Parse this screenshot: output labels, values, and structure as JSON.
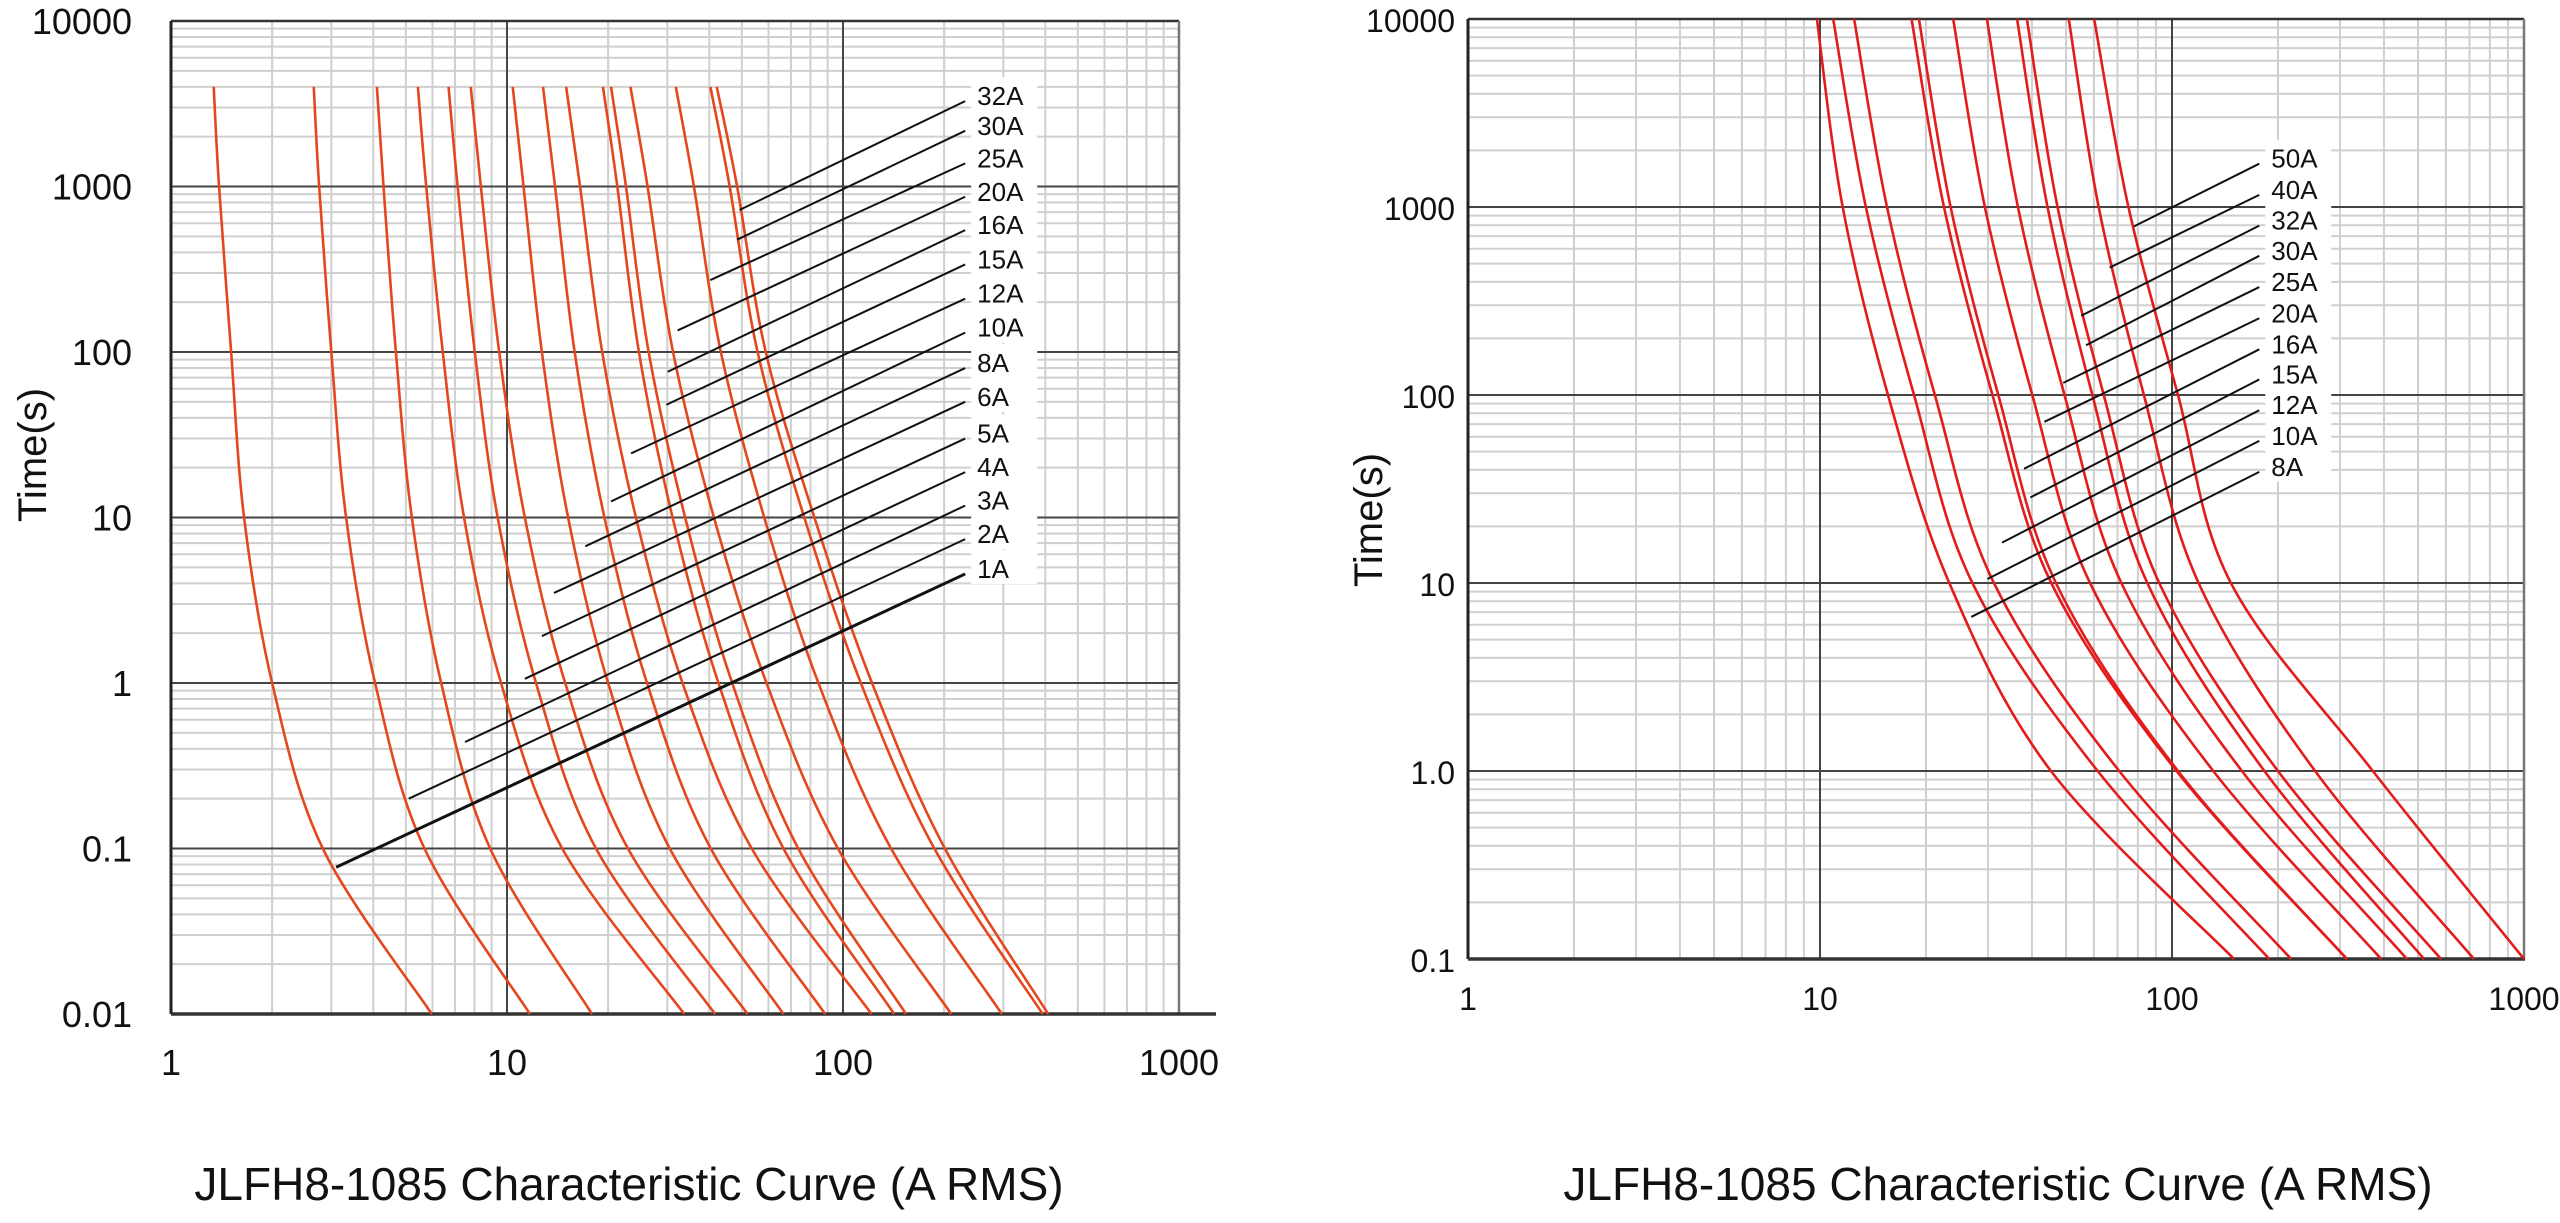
{
  "chart_data": [
    {
      "type": "line",
      "title": "JLFH8-1085  Characteristic Curve (A RMS)",
      "xlabel": "",
      "ylabel": "Time(s)",
      "xscale": "log",
      "yscale": "log",
      "xlim": [
        1,
        1000
      ],
      "ylim": [
        0.01,
        10000
      ],
      "grid": true,
      "line_color": "#e5461c",
      "x_ticks": [
        "1",
        "10",
        "100",
        "1000"
      ],
      "y_ticks": [
        "10000",
        "1000",
        "100",
        "10",
        "1",
        "0.1",
        "0.01"
      ],
      "legend": "leader-line labels, right",
      "series": [
        {
          "name": "1A",
          "points": [
            [
              1.34,
              4000
            ],
            [
              1.39,
              1000
            ],
            [
              1.51,
              100
            ],
            [
              1.65,
              10
            ],
            [
              2.0,
              1
            ],
            [
              2.83,
              0.1
            ],
            [
              5.97,
              0.01
            ]
          ],
          "label_from": [
            3.1,
            0.077
          ],
          "label_to": [
            231,
            4.56
          ]
        },
        {
          "name": "2A",
          "points": [
            [
              2.66,
              4000
            ],
            [
              2.76,
              1000
            ],
            [
              3.0,
              100
            ],
            [
              3.32,
              10
            ],
            [
              4.05,
              1
            ],
            [
              5.68,
              0.1
            ],
            [
              11.7,
              0.01
            ]
          ],
          "label_from": [
            5.1,
            0.2
          ],
          "label_to": [
            231,
            7.4
          ]
        },
        {
          "name": "3A",
          "points": [
            [
              4.1,
              4000
            ],
            [
              4.29,
              1000
            ],
            [
              4.67,
              100
            ],
            [
              5.21,
              10
            ],
            [
              6.37,
              1
            ],
            [
              8.91,
              0.1
            ],
            [
              17.9,
              0.01
            ]
          ],
          "label_from": [
            7.5,
            0.44
          ],
          "label_to": [
            231,
            11.8
          ]
        },
        {
          "name": "4A",
          "points": [
            [
              5.43,
              4000
            ],
            [
              5.75,
              1000
            ],
            [
              6.44,
              100
            ],
            [
              7.45,
              10
            ],
            [
              9.6,
              1
            ],
            [
              14.6,
              0.1
            ],
            [
              33.7,
              0.01
            ]
          ],
          "label_from": [
            11.3,
            1.06
          ],
          "label_to": [
            231,
            18.8
          ]
        },
        {
          "name": "5A",
          "points": [
            [
              6.7,
              4000
            ],
            [
              7.13,
              1000
            ],
            [
              8.02,
              100
            ],
            [
              9.38,
              10
            ],
            [
              12.2,
              1
            ],
            [
              18.4,
              0.1
            ],
            [
              41.6,
              0.01
            ]
          ],
          "label_from": [
            12.7,
            1.92
          ],
          "label_to": [
            231,
            30
          ]
        },
        {
          "name": "6A",
          "points": [
            [
              7.8,
              4000
            ],
            [
              8.36,
              1000
            ],
            [
              9.48,
              100
            ],
            [
              11.3,
              10
            ],
            [
              14.9,
              1
            ],
            [
              22.9,
              0.1
            ],
            [
              52,
              0.01
            ]
          ],
          "label_from": [
            13.8,
            3.5
          ],
          "label_to": [
            231,
            50
          ]
        },
        {
          "name": "8A",
          "points": [
            [
              10.4,
              4000
            ],
            [
              11.2,
              1000
            ],
            [
              12.7,
              100
            ],
            [
              15.2,
              10
            ],
            [
              20.0,
              1
            ],
            [
              30.5,
              0.1
            ],
            [
              66.5,
              0.01
            ]
          ],
          "label_from": [
            17.1,
            6.7
          ],
          "label_to": [
            231,
            80
          ]
        },
        {
          "name": "10A",
          "points": [
            [
              12.8,
              4000
            ],
            [
              13.9,
              1000
            ],
            [
              15.9,
              100
            ],
            [
              19.5,
              10
            ],
            [
              26.1,
              1
            ],
            [
              40.4,
              0.1
            ],
            [
              88.5,
              0.01
            ]
          ],
          "label_from": [
            20.4,
            12.5
          ],
          "label_to": [
            231,
            131
          ]
        },
        {
          "name": "12A",
          "points": [
            [
              15.0,
              4000
            ],
            [
              16.5,
              1000
            ],
            [
              19.2,
              100
            ],
            [
              24.2,
              10
            ],
            [
              33.3,
              1
            ],
            [
              53.5,
              0.1
            ],
            [
              121.6,
              0.01
            ]
          ],
          "label_from": [
            23.4,
            24.4
          ],
          "label_to": [
            231,
            210
          ]
        },
        {
          "name": "15A",
          "points": [
            [
              19.3,
              4000
            ],
            [
              21.3,
              1000
            ],
            [
              24.7,
              100
            ],
            [
              31.1,
              10
            ],
            [
              42.6,
              1
            ],
            [
              66.5,
              0.1
            ],
            [
              142,
              0.01
            ]
          ],
          "label_from": [
            29.8,
            48
          ],
          "label_to": [
            231,
            338
          ]
        },
        {
          "name": "16A",
          "points": [
            [
              20.4,
              4000
            ],
            [
              22.6,
              1000
            ],
            [
              26.4,
              100
            ],
            [
              33.9,
              10
            ],
            [
              46.8,
              1
            ],
            [
              73.6,
              0.1
            ],
            [
              154,
              0.01
            ]
          ],
          "label_from": [
            30.1,
            76
          ],
          "label_to": [
            231,
            545
          ]
        },
        {
          "name": "20A",
          "points": [
            [
              23.3,
              4000
            ],
            [
              26.2,
              1000
            ],
            [
              31.2,
              100
            ],
            [
              41.3,
              10
            ],
            [
              59.2,
              1
            ],
            [
              96.6,
              0.1
            ],
            [
              210,
              0.01
            ]
          ],
          "label_from": [
            32.2,
            135
          ],
          "label_to": [
            231,
            867
          ]
        },
        {
          "name": "25A",
          "points": [
            [
              31.8,
              4000
            ],
            [
              36.0,
              1000
            ],
            [
              43.3,
              100
            ],
            [
              58.3,
              10
            ],
            [
              84.5,
              1
            ],
            [
              139,
              0.1
            ],
            [
              297,
              0.01
            ]
          ],
          "label_from": [
            40.3,
            272
          ],
          "label_to": [
            231,
            1380
          ]
        },
        {
          "name": "30A",
          "points": [
            [
              40.3,
              4000
            ],
            [
              46.0,
              1000
            ],
            [
              55.7,
              100
            ],
            [
              76.7,
              10
            ],
            [
              113,
              1
            ],
            [
              187,
              0.1
            ],
            [
              393,
              0.01
            ]
          ],
          "label_from": [
            48.4,
            477
          ],
          "label_to": [
            231,
            2170
          ]
        },
        {
          "name": "32A",
          "points": [
            [
              42.1,
              4000
            ],
            [
              48.4,
              1000
            ],
            [
              58.9,
              100
            ],
            [
              82.2,
              10
            ],
            [
              122,
              1
            ],
            [
              201,
              0.1
            ],
            [
              408,
              0.01
            ]
          ],
          "label_from": [
            49.2,
            721
          ],
          "label_to": [
            231,
            3280
          ]
        }
      ]
    },
    {
      "type": "line",
      "title": "JLFH8-1085  Characteristic Curve (A RMS)",
      "xlabel": "",
      "ylabel": "Time(s)",
      "xscale": "log",
      "yscale": "log",
      "xlim": [
        1,
        1000
      ],
      "ylim": [
        0.1,
        10000
      ],
      "grid": true,
      "line_color": "#e31b1b",
      "x_ticks": [
        "1",
        "10",
        "100",
        "1000"
      ],
      "y_ticks": [
        "10000",
        "1000",
        "100",
        "10",
        "1.0",
        "0.1"
      ],
      "legend": "leader-line labels, right",
      "series": [
        {
          "name": "8A",
          "points": [
            [
              9.8,
              10000
            ],
            [
              11.6,
              1000
            ],
            [
              15.6,
              100
            ],
            [
              23.3,
              10
            ],
            [
              45.3,
              1
            ],
            [
              150,
              0.1
            ]
          ],
          "label_from": [
            26.9,
            6.6
          ],
          "label_to": [
            177,
            39
          ]
        },
        {
          "name": "10A",
          "points": [
            [
              10.9,
              10000
            ],
            [
              13.5,
              1000
            ],
            [
              18.5,
              100
            ],
            [
              27.1,
              10
            ],
            [
              61.5,
              1
            ],
            [
              189,
              0.1
            ]
          ],
          "label_from": [
            29.9,
            10.5
          ],
          "label_to": [
            177,
            57
          ]
        },
        {
          "name": "12A",
          "points": [
            [
              12.5,
              10000
            ],
            [
              15.5,
              1000
            ],
            [
              21.2,
              100
            ],
            [
              31.2,
              10
            ],
            [
              70.8,
              1
            ],
            [
              218,
              0.1
            ]
          ],
          "label_from": [
            32.9,
            16.4
          ],
          "label_to": [
            177,
            83
          ]
        },
        {
          "name": "15A",
          "points": [
            [
              18.2,
              10000
            ],
            [
              22.5,
              1000
            ],
            [
              30.9,
              100
            ],
            [
              45.4,
              10
            ],
            [
              103,
              1
            ],
            [
              314,
              0.1
            ]
          ],
          "label_from": [
            39.6,
            28.5
          ],
          "label_to": [
            177,
            121
          ]
        },
        {
          "name": "16A",
          "points": [
            [
              19.1,
              10000
            ],
            [
              23.5,
              1000
            ],
            [
              32.1,
              100
            ],
            [
              46.8,
              10
            ],
            [
              104,
              1
            ],
            [
              314,
              0.1
            ]
          ],
          "label_from": [
            38,
            40.5
          ],
          "label_to": [
            177,
            175
          ]
        },
        {
          "name": "20A",
          "points": [
            [
              23.9,
              10000
            ],
            [
              29.4,
              1000
            ],
            [
              40.1,
              100
            ],
            [
              58.5,
              10
            ],
            [
              131,
              1
            ],
            [
              393,
              0.1
            ]
          ],
          "label_from": [
            43.4,
            72
          ],
          "label_to": [
            177,
            256
          ]
        },
        {
          "name": "25A",
          "points": [
            [
              29.8,
              10000
            ],
            [
              36.5,
              1000
            ],
            [
              49.5,
              100
            ],
            [
              71.8,
              10
            ],
            [
              158,
              1
            ],
            [
              465,
              0.1
            ]
          ],
          "label_from": [
            49.1,
            116
          ],
          "label_to": [
            177,
            375
          ]
        },
        {
          "name": "30A",
          "points": [
            [
              36.3,
              10000
            ],
            [
              44.3,
              1000
            ],
            [
              59.4,
              100
            ],
            [
              85.1,
              10
            ],
            [
              183,
              1
            ],
            [
              520,
              0.1
            ]
          ],
          "label_from": [
            57,
            184
          ],
          "label_to": [
            177,
            550
          ]
        },
        {
          "name": "32A",
          "points": [
            [
              38.7,
              10000
            ],
            [
              47.3,
              1000
            ],
            [
              64.0,
              100
            ],
            [
              92.0,
              10
            ],
            [
              200,
              1
            ],
            [
              581,
              0.1
            ]
          ],
          "label_from": [
            55.2,
            264
          ],
          "label_to": [
            177,
            796
          ]
        },
        {
          "name": "40A",
          "points": [
            [
              50.9,
              10000
            ],
            [
              61.9,
              1000
            ],
            [
              83.2,
              100
            ],
            [
              119,
              10
            ],
            [
              255,
              1
            ],
            [
              721,
              0.1
            ]
          ],
          "label_from": [
            66.5,
            476
          ],
          "label_to": [
            177,
            1160
          ]
        },
        {
          "name": "50A",
          "points": [
            [
              60.1,
              10000
            ],
            [
              75.2,
              1000
            ],
            [
              104,
              100
            ],
            [
              147,
              10
            ],
            [
              372,
              1
            ],
            [
              1000,
              0.1
            ]
          ],
          "label_from": [
            78,
            789
          ],
          "label_to": [
            177,
            1700
          ]
        }
      ]
    }
  ]
}
